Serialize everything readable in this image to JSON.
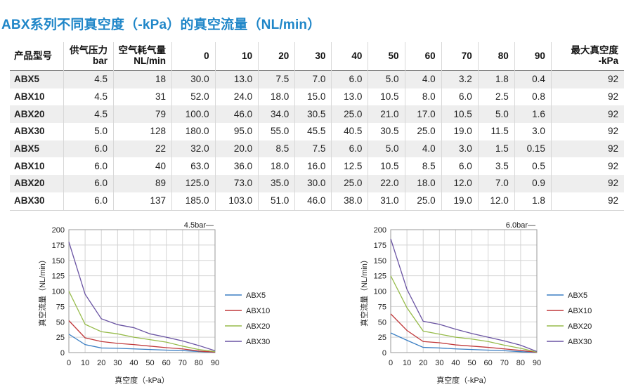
{
  "title": "ABX系列不同真空度（-kPa）的真空流量（NL/min）",
  "table": {
    "headers": {
      "model": "产品型号",
      "supply_line1": "供气压力",
      "supply_line2": "bar",
      "air_line1": "空气耗气量",
      "air_line2": "NL/min",
      "vacuum_levels": [
        "0",
        "10",
        "20",
        "30",
        "40",
        "50",
        "60",
        "70",
        "80",
        "90"
      ],
      "max_line1": "最大真空度",
      "max_line2": "-kPa"
    },
    "rows": [
      {
        "model": "ABX5",
        "pressure": "4.5",
        "air": "18",
        "flows": [
          "30.0",
          "13.0",
          "7.5",
          "7.0",
          "6.0",
          "5.0",
          "4.0",
          "3.2",
          "1.8",
          "0.4"
        ],
        "max": "92"
      },
      {
        "model": "ABX10",
        "pressure": "4.5",
        "air": "31",
        "flows": [
          "52.0",
          "24.0",
          "18.0",
          "15.0",
          "13.0",
          "10.5",
          "8.0",
          "6.0",
          "2.5",
          "0.8"
        ],
        "max": "92"
      },
      {
        "model": "ABX20",
        "pressure": "4.5",
        "air": "79",
        "flows": [
          "100.0",
          "46.0",
          "34.0",
          "30.5",
          "25.0",
          "21.0",
          "17.0",
          "10.5",
          "5.0",
          "1.6"
        ],
        "max": "92"
      },
      {
        "model": "ABX30",
        "pressure": "5.0",
        "air": "128",
        "flows": [
          "180.0",
          "95.0",
          "55.0",
          "45.5",
          "40.5",
          "30.5",
          "25.0",
          "19.0",
          "11.5",
          "3.0"
        ],
        "max": "92"
      },
      {
        "model": "ABX5",
        "pressure": "6.0",
        "air": "22",
        "flows": [
          "32.0",
          "20.0",
          "8.5",
          "7.5",
          "6.0",
          "5.0",
          "4.0",
          "3.0",
          "1.5",
          "0.15"
        ],
        "max": "92"
      },
      {
        "model": "ABX10",
        "pressure": "6.0",
        "air": "40",
        "flows": [
          "63.0",
          "36.0",
          "18.0",
          "16.0",
          "12.5",
          "10.5",
          "8.5",
          "6.0",
          "3.5",
          "0.5"
        ],
        "max": "92"
      },
      {
        "model": "ABX20",
        "pressure": "6.0",
        "air": "89",
        "flows": [
          "125.0",
          "73.0",
          "35.0",
          "30.0",
          "25.0",
          "22.0",
          "18.0",
          "12.0",
          "7.0",
          "0.9"
        ],
        "max": "92"
      },
      {
        "model": "ABX30",
        "pressure": "6.0",
        "air": "137",
        "flows": [
          "185.0",
          "103.0",
          "51.0",
          "46.0",
          "38.0",
          "31.0",
          "25.0",
          "19.0",
          "12.0",
          "1.8"
        ],
        "max": "92"
      }
    ]
  },
  "chart_data": [
    {
      "type": "line",
      "annotation": "4.5bar—",
      "xlabel": "真空度（-kPa）",
      "ylabel": "真空流量（NL/min）",
      "x": [
        0,
        10,
        20,
        30,
        40,
        50,
        60,
        70,
        80,
        90
      ],
      "xlim": [
        0,
        90
      ],
      "ylim": [
        0,
        200
      ],
      "yticks": [
        0,
        25,
        50,
        75,
        100,
        125,
        150,
        175,
        200
      ],
      "grid": true,
      "legend_position": "right",
      "series": [
        {
          "name": "ABX5",
          "color": "#3b7fc4",
          "values": [
            30,
            13,
            7.5,
            7,
            6,
            5,
            4,
            3.2,
            1.8,
            0.4
          ]
        },
        {
          "name": "ABX10",
          "color": "#c0393b",
          "values": [
            52,
            24,
            18,
            15,
            13,
            10.5,
            8,
            6,
            2.5,
            0.8
          ]
        },
        {
          "name": "ABX20",
          "color": "#96bb4a",
          "values": [
            100,
            46,
            34,
            30.5,
            25,
            21,
            17,
            10.5,
            5,
            1.6
          ]
        },
        {
          "name": "ABX30",
          "color": "#6a54a3",
          "values": [
            180,
            95,
            55,
            45.5,
            40.5,
            30.5,
            25,
            19,
            11.5,
            3
          ]
        }
      ]
    },
    {
      "type": "line",
      "annotation": "6.0bar—",
      "xlabel": "真空度（-kPa）",
      "ylabel": "真空流量（NL/min）",
      "x": [
        0,
        10,
        20,
        30,
        40,
        50,
        60,
        70,
        80,
        90
      ],
      "xlim": [
        0,
        90
      ],
      "ylim": [
        0,
        200
      ],
      "yticks": [
        0,
        25,
        50,
        75,
        100,
        125,
        150,
        175,
        200
      ],
      "grid": true,
      "legend_position": "right",
      "series": [
        {
          "name": "ABX5",
          "color": "#3b7fc4",
          "values": [
            32,
            20,
            8.5,
            7.5,
            6,
            5,
            4,
            3,
            1.5,
            0.15
          ]
        },
        {
          "name": "ABX10",
          "color": "#c0393b",
          "values": [
            63,
            36,
            18,
            16,
            12.5,
            10.5,
            8.5,
            6,
            3.5,
            0.5
          ]
        },
        {
          "name": "ABX20",
          "color": "#96bb4a",
          "values": [
            125,
            73,
            35,
            30,
            25,
            22,
            18,
            12,
            7,
            0.9
          ]
        },
        {
          "name": "ABX30",
          "color": "#6a54a3",
          "values": [
            185,
            103,
            51,
            46,
            38,
            31,
            25,
            19,
            12,
            1.8
          ]
        }
      ]
    }
  ]
}
